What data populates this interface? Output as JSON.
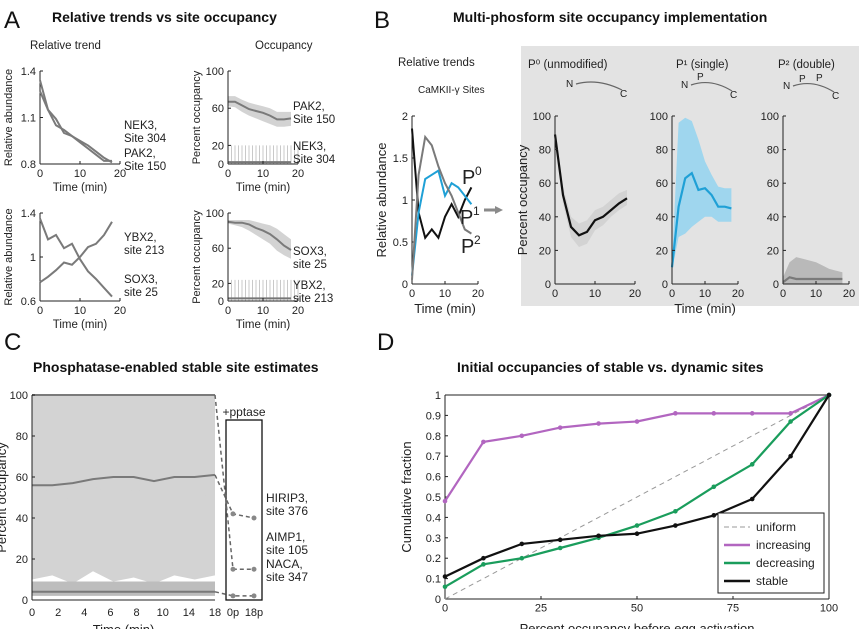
{
  "panels": {
    "A": {
      "letter": "A",
      "title": "Relative trends vs site occupancy",
      "col1": "Relative trend",
      "col2": "Occupancy"
    },
    "B": {
      "letter": "B",
      "title": "Multi-phosform site occupancy implementation",
      "rel_title": "Relative trends",
      "sub": "CaMKII-γ Sites",
      "f0": "P⁰ (unmodified)",
      "f1": "P¹ (single)",
      "f2": "P² (double)",
      "curve_labels": [
        "P",
        "P",
        "P"
      ],
      "curve_sups": [
        "0",
        "1",
        "2"
      ],
      "schematic_n": "N",
      "schematic_c": "C",
      "schematic_p": "P"
    },
    "C": {
      "letter": "C",
      "title": "Phosphatase-enabled stable site estimates",
      "pptase": "+pptase"
    },
    "D": {
      "letter": "D",
      "title": "Initial occupancies of stable vs. dynamic sites"
    }
  },
  "axes": {
    "rel_abundance": "Relative abundance",
    "pct_occupancy": "Percent occupancy",
    "time": "Time (min)",
    "cum_fraction": "Cumulative fraction",
    "pct_before": "Percent occupancy before egg activation"
  },
  "colors": {
    "gray": "#7a7a7a",
    "band": "#d3d3d3",
    "blue": "#1fa0d6",
    "lightblue": "#9fd6ee",
    "purple": "#b266c0",
    "green": "#1a9d5c",
    "black": "#111111",
    "panelbg": "#e3e3e3"
  },
  "chart_data": [
    {
      "type": "line",
      "id": "A1",
      "ylabel": "Relative abundance",
      "xlabel": "Time (min)",
      "xlim": [
        0,
        20
      ],
      "ylim": [
        0.8,
        1.4
      ],
      "xticks": [
        0,
        10,
        20
      ],
      "yticks": [
        0.8,
        1.1,
        1.4
      ],
      "series": [
        {
          "name": "NEK3, Site 304",
          "x": [
            0,
            2,
            4,
            6,
            8,
            10,
            12,
            14,
            16,
            18
          ],
          "y": [
            1.34,
            1.15,
            1.05,
            1.02,
            0.98,
            0.94,
            0.9,
            0.86,
            0.82,
            0.82
          ]
        },
        {
          "name": "PAK2, Site 150",
          "x": [
            0,
            2,
            4,
            6,
            8,
            10,
            12,
            14,
            16,
            18
          ],
          "y": [
            1.27,
            1.15,
            1.09,
            1.0,
            0.98,
            0.95,
            0.92,
            0.88,
            0.84,
            0.81
          ]
        }
      ]
    },
    {
      "type": "area",
      "id": "A2",
      "ylabel": "Percent occupancy",
      "xlim": [
        0,
        20
      ],
      "ylim": [
        0,
        100
      ],
      "xticks": [
        0,
        10,
        20
      ],
      "yticks": [
        0,
        20,
        60,
        100
      ],
      "series": [
        {
          "name": "PAK2, Site 150",
          "x": [
            0,
            2,
            4,
            6,
            8,
            10,
            12,
            14,
            16,
            18
          ],
          "y": [
            67,
            67,
            63,
            59,
            57,
            55,
            52,
            48,
            48,
            49
          ],
          "lo": [
            62,
            61,
            56,
            52,
            49,
            46,
            43,
            40,
            40,
            41
          ],
          "hi": [
            73,
            73,
            69,
            66,
            64,
            62,
            60,
            56,
            56,
            56
          ]
        },
        {
          "name": "NEK3, Site 304",
          "x": [
            0,
            18
          ],
          "y": [
            2,
            2
          ],
          "lo": [
            0,
            0
          ],
          "hi": [
            20,
            20
          ]
        }
      ]
    },
    {
      "type": "line",
      "id": "A3",
      "ylabel": "Relative abundance",
      "xlabel": "Time (min)",
      "xlim": [
        0,
        20
      ],
      "ylim": [
        0.6,
        1.4
      ],
      "xticks": [
        0,
        10,
        20
      ],
      "yticks": [
        0.6,
        1,
        1.4
      ],
      "series": [
        {
          "name": "YBX2, site 213",
          "x": [
            0,
            2,
            4,
            6,
            8,
            10,
            12,
            14,
            16,
            18
          ],
          "y": [
            0.77,
            0.82,
            0.88,
            0.95,
            0.93,
            1.0,
            1.09,
            1.12,
            1.2,
            1.32
          ]
        },
        {
          "name": "SOX3, site 25",
          "x": [
            0,
            2,
            4,
            6,
            8,
            10,
            12,
            14,
            16,
            18
          ],
          "y": [
            1.35,
            1.16,
            1.2,
            1.08,
            1.12,
            0.98,
            0.87,
            0.8,
            0.72,
            0.64
          ]
        }
      ]
    },
    {
      "type": "area",
      "id": "A4",
      "ylabel": "Percent occupancy",
      "xlim": [
        0,
        20
      ],
      "ylim": [
        0,
        100
      ],
      "xticks": [
        0,
        10,
        20
      ],
      "yticks": [
        0,
        20,
        60,
        100
      ],
      "series": [
        {
          "name": "SOX3, site 25",
          "x": [
            0,
            2,
            4,
            6,
            8,
            10,
            12,
            14,
            16,
            18
          ],
          "y": [
            90,
            89,
            89,
            87,
            83,
            80,
            76,
            70,
            63,
            58
          ],
          "lo": [
            88,
            86,
            84,
            80,
            75,
            70,
            65,
            57,
            52,
            48
          ],
          "hi": [
            92,
            92,
            92,
            92,
            90,
            88,
            86,
            82,
            76,
            70
          ]
        },
        {
          "name": "YBX2, site 213",
          "x": [
            0,
            18
          ],
          "y": [
            3,
            3
          ],
          "lo": [
            0,
            0
          ],
          "hi": [
            24,
            24
          ]
        }
      ]
    },
    {
      "type": "line",
      "id": "B1",
      "ylabel": "Relative abundance",
      "xlabel": "Time (min)",
      "xlim": [
        0,
        20
      ],
      "ylim": [
        0,
        2
      ],
      "xticks": [
        0,
        10,
        20
      ],
      "yticks": [
        0,
        0.5,
        1,
        1.5,
        2
      ],
      "series": [
        {
          "name": "P0",
          "x": [
            0,
            2,
            4,
            6,
            8,
            10,
            12,
            14,
            16,
            18
          ],
          "y": [
            1.85,
            0.85,
            0.55,
            0.65,
            0.55,
            0.8,
            0.95,
            0.8,
            1.0,
            1.15
          ]
        },
        {
          "name": "P1",
          "x": [
            0,
            2,
            4,
            6,
            8,
            10,
            12,
            14,
            16,
            18
          ],
          "y": [
            0.1,
            0.85,
            1.25,
            1.3,
            1.35,
            1.05,
            1.2,
            1.15,
            1.05,
            0.95
          ]
        },
        {
          "name": "P2",
          "x": [
            0,
            2,
            4,
            6,
            8,
            10,
            12,
            14,
            16,
            18
          ],
          "y": [
            0.05,
            1.3,
            1.75,
            1.65,
            1.4,
            1.2,
            1.05,
            0.85,
            0.65,
            0.6
          ]
        }
      ]
    },
    {
      "type": "area",
      "id": "B2",
      "xlim": [
        0,
        20
      ],
      "ylim": [
        0,
        100
      ],
      "xticks": [
        0,
        10,
        20
      ],
      "yticks": [
        0,
        20,
        40,
        60,
        80,
        100
      ],
      "series": [
        {
          "name": "P0",
          "x": [
            0,
            2,
            4,
            6,
            8,
            10,
            12,
            14,
            16,
            18
          ],
          "y": [
            89,
            53,
            34,
            29,
            31,
            38,
            40,
            44,
            48,
            51
          ],
          "lo": [
            86,
            48,
            28,
            22,
            24,
            32,
            35,
            40,
            44,
            47
          ],
          "hi": [
            92,
            58,
            40,
            36,
            38,
            44,
            46,
            50,
            54,
            56
          ]
        }
      ]
    },
    {
      "type": "area",
      "id": "B3",
      "xlim": [
        0,
        20
      ],
      "ylim": [
        0,
        100
      ],
      "xticks": [
        0,
        10,
        20
      ],
      "yticks": [
        0,
        20,
        40,
        60,
        80,
        100
      ],
      "series": [
        {
          "name": "P1",
          "x": [
            0,
            2,
            4,
            6,
            8,
            10,
            12,
            14,
            16,
            18
          ],
          "y": [
            10,
            46,
            63,
            66,
            56,
            57,
            53,
            46,
            46,
            45
          ],
          "lo": [
            8,
            28,
            30,
            34,
            37,
            40,
            40,
            37,
            37,
            37
          ],
          "hi": [
            12,
            96,
            99,
            97,
            86,
            73,
            65,
            58,
            57,
            57
          ]
        }
      ]
    },
    {
      "type": "area",
      "id": "B4",
      "xlim": [
        0,
        20
      ],
      "ylim": [
        0,
        100
      ],
      "xticks": [
        0,
        10,
        20
      ],
      "yticks": [
        0,
        20,
        40,
        60,
        80,
        100
      ],
      "series": [
        {
          "name": "P2",
          "x": [
            0,
            2,
            4,
            6,
            8,
            10,
            12,
            14,
            16,
            18
          ],
          "y": [
            1,
            4,
            3,
            3,
            3,
            3,
            3,
            3,
            3,
            3
          ],
          "lo": [
            0,
            0,
            0,
            0,
            0,
            0,
            0,
            0,
            0,
            0
          ],
          "hi": [
            4,
            13,
            16,
            15,
            14,
            13,
            11,
            9,
            8,
            7
          ]
        }
      ]
    },
    {
      "type": "area",
      "id": "C",
      "ylabel": "Percent occupancy",
      "xlabel": "Time (min)",
      "xlim": [
        0,
        18
      ],
      "ylim": [
        0,
        100
      ],
      "xtick_labels": [
        "0",
        "2",
        "4",
        "6",
        "8",
        "10",
        "14",
        "18",
        "0p",
        "18p"
      ],
      "yticks": [
        0,
        20,
        40,
        60,
        80,
        100
      ],
      "series": [
        {
          "name": "HIRIP3, site 376",
          "x": [
            0,
            2,
            4,
            6,
            8,
            10,
            12,
            14,
            16,
            18
          ],
          "y": [
            56,
            56,
            57,
            59,
            60,
            60,
            58,
            60,
            60,
            61
          ],
          "pptase": [
            42,
            40
          ]
        },
        {
          "name": "AIMP1, site 105",
          "x": [
            0,
            18
          ],
          "y": [
            100,
            100
          ],
          "pptase": [
            15,
            15
          ]
        },
        {
          "name": "NACA, site 347",
          "x": [
            0,
            2,
            4,
            6,
            8,
            10,
            12,
            14,
            16,
            18
          ],
          "y": [
            4,
            4,
            4,
            4,
            4,
            4,
            4,
            4,
            4,
            4
          ],
          "pptase": [
            2,
            2
          ]
        }
      ]
    },
    {
      "type": "line",
      "id": "D",
      "ylabel": "Cumulative fraction",
      "xlabel": "Percent occupancy before egg activation",
      "xlim": [
        0,
        100
      ],
      "ylim": [
        0,
        1
      ],
      "xticks": [
        0,
        25,
        50,
        75,
        100
      ],
      "yticks": [
        0,
        0.1,
        0.2,
        0.3,
        0.4,
        0.5,
        0.6,
        0.7,
        0.8,
        0.9,
        1
      ],
      "series": [
        {
          "name": "uniform",
          "x": [
            0,
            100
          ],
          "y": [
            0,
            1
          ]
        },
        {
          "name": "increasing",
          "x": [
            0,
            10,
            20,
            30,
            40,
            50,
            60,
            70,
            80,
            90,
            100
          ],
          "y": [
            0.48,
            0.77,
            0.8,
            0.84,
            0.86,
            0.87,
            0.91,
            0.91,
            0.91,
            0.91,
            1.0
          ]
        },
        {
          "name": "decreasing",
          "x": [
            0,
            10,
            20,
            30,
            40,
            50,
            60,
            70,
            80,
            90,
            100
          ],
          "y": [
            0.06,
            0.17,
            0.2,
            0.25,
            0.3,
            0.36,
            0.43,
            0.55,
            0.66,
            0.87,
            1.0
          ]
        },
        {
          "name": "stable",
          "x": [
            0,
            10,
            20,
            30,
            40,
            50,
            60,
            70,
            80,
            90,
            100
          ],
          "y": [
            0.11,
            0.2,
            0.27,
            0.29,
            0.31,
            0.32,
            0.36,
            0.41,
            0.49,
            0.7,
            1.0
          ]
        }
      ]
    }
  ]
}
